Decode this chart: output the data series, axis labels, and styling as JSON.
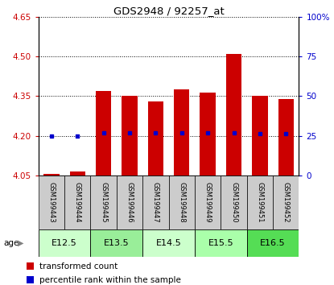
{
  "title": "GDS2948 / 92257_at",
  "samples": [
    "GSM199443",
    "GSM199444",
    "GSM199445",
    "GSM199446",
    "GSM199447",
    "GSM199448",
    "GSM199449",
    "GSM199450",
    "GSM199451",
    "GSM199452"
  ],
  "bar_values": [
    4.055,
    4.065,
    4.37,
    4.35,
    4.33,
    4.375,
    4.365,
    4.51,
    4.35,
    4.34
  ],
  "percentile_values": [
    4.198,
    4.198,
    4.212,
    4.212,
    4.212,
    4.212,
    4.212,
    4.212,
    4.207,
    4.207
  ],
  "bar_base": 4.05,
  "ylim": [
    4.05,
    4.65
  ],
  "y2lim": [
    0,
    100
  ],
  "yticks": [
    4.05,
    4.2,
    4.35,
    4.5,
    4.65
  ],
  "y2ticks": [
    0,
    25,
    50,
    75,
    100
  ],
  "bar_color": "#CC0000",
  "percentile_color": "#0000CC",
  "bar_width": 0.6,
  "age_groups": [
    {
      "label": "E12.5",
      "samples": [
        0,
        1
      ],
      "color": "#CCFFCC"
    },
    {
      "label": "E13.5",
      "samples": [
        2,
        3
      ],
      "color": "#99EE99"
    },
    {
      "label": "E14.5",
      "samples": [
        4,
        5
      ],
      "color": "#CCFFCC"
    },
    {
      "label": "E15.5",
      "samples": [
        6,
        7
      ],
      "color": "#AAFFAA"
    },
    {
      "label": "E16.5",
      "samples": [
        8,
        9
      ],
      "color": "#55DD55"
    }
  ],
  "sample_area_color": "#CCCCCC",
  "legend_items": [
    {
      "label": "transformed count",
      "color": "#CC0000"
    },
    {
      "label": "percentile rank within the sample",
      "color": "#0000CC"
    }
  ]
}
